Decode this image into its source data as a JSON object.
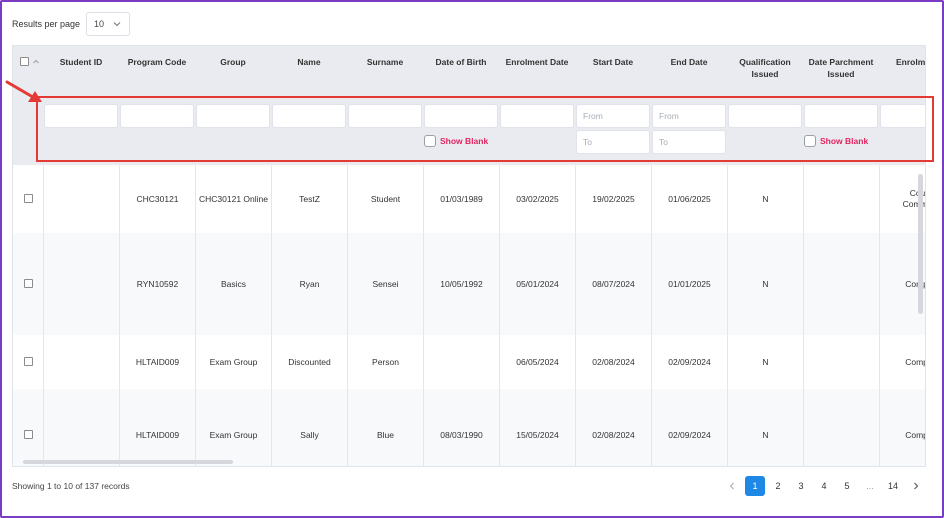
{
  "results_per_page": {
    "label": "Results per page",
    "value": "10"
  },
  "columns": [
    {
      "key": "student_id",
      "title": "Student ID"
    },
    {
      "key": "program_code",
      "title": "Program Code"
    },
    {
      "key": "group",
      "title": "Group"
    },
    {
      "key": "name",
      "title": "Name"
    },
    {
      "key": "surname",
      "title": "Surname"
    },
    {
      "key": "dob",
      "title": "Date of Birth"
    },
    {
      "key": "enrolment_date",
      "title": "Enrolment Date"
    },
    {
      "key": "start_date",
      "title": "Start Date"
    },
    {
      "key": "end_date",
      "title": "End Date"
    },
    {
      "key": "qualification_issued",
      "title": "Qualification Issued"
    },
    {
      "key": "date_parchment_issued",
      "title": "Date Parchment Issued"
    },
    {
      "key": "enrolment",
      "title": "Enrolment"
    }
  ],
  "filters": {
    "from_placeholder": "From",
    "to_placeholder": "To",
    "show_blank_label": "Show Blank"
  },
  "rows": [
    {
      "student_id": "",
      "program_code": "CHC30121",
      "group": "CHC30121 Online",
      "name": "TestZ",
      "surname": "Student",
      "dob": "01/03/1989",
      "enrolment_date": "03/02/2025",
      "start_date": "19/02/2025",
      "end_date": "01/06/2025",
      "qualification_issued": "N",
      "date_parchment_issued": "",
      "enrolment": "Cou\nComme"
    },
    {
      "student_id": "",
      "program_code": "RYN10592",
      "group": "Basics",
      "name": "Ryan",
      "surname": "Sensei",
      "dob": "10/05/1992",
      "enrolment_date": "05/01/2024",
      "start_date": "08/07/2024",
      "end_date": "01/01/2025",
      "qualification_issued": "N",
      "date_parchment_issued": "",
      "enrolment": "Compl"
    },
    {
      "student_id": "",
      "program_code": "HLTAID009",
      "group": "Exam Group",
      "name": "Discounted",
      "surname": "Person",
      "dob": "",
      "enrolment_date": "06/05/2024",
      "start_date": "02/08/2024",
      "end_date": "02/09/2024",
      "qualification_issued": "N",
      "date_parchment_issued": "",
      "enrolment": "Compl"
    },
    {
      "student_id": "",
      "program_code": "HLTAID009",
      "group": "Exam Group",
      "name": "Sally",
      "surname": "Blue",
      "dob": "08/03/1990",
      "enrolment_date": "15/05/2024",
      "start_date": "02/08/2024",
      "end_date": "02/09/2024",
      "qualification_issued": "N",
      "date_parchment_issued": "",
      "enrolment": "Compl"
    }
  ],
  "footer": {
    "info": "Showing 1 to 10 of 137 records"
  },
  "pagination": {
    "pages": [
      "1",
      "2",
      "3",
      "4",
      "5",
      "...",
      "14"
    ],
    "current": "1"
  },
  "colors": {
    "accent": "#1e88e5",
    "show_blank": "#e0245e",
    "highlight": "#e53935",
    "frame": "#7a3cc2",
    "header_bg": "#e9ebf1"
  }
}
